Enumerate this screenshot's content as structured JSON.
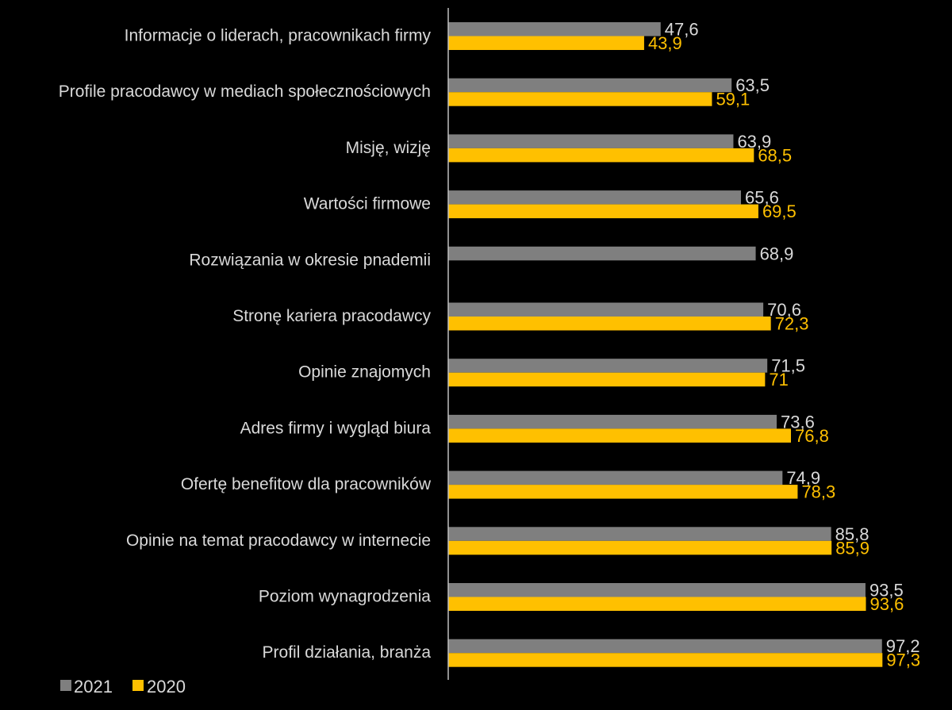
{
  "chart_data": {
    "type": "bar",
    "orientation": "horizontal",
    "categories": [
      "Informacje o liderach, pracownikach firmy",
      "Profile pracodawcy w mediach społecznościowych",
      "Misję, wizję",
      "Wartości firmowe",
      "Rozwiązania w okresie pnademii",
      "Stronę kariera pracodawcy",
      "Opinie znajomych",
      "Adres firmy i wygląd biura",
      "Ofertę benefitow dla pracowników",
      "Opinie na temat pracodawcy w internecie",
      "Poziom wynagrodzenia",
      "Profil działania, branża"
    ],
    "series": [
      {
        "name": "2021",
        "color": "#7f7f7f",
        "label_color": "#d9d9d9",
        "values": [
          47.6,
          63.5,
          63.9,
          65.6,
          68.9,
          70.6,
          71.5,
          73.6,
          74.9,
          85.8,
          93.5,
          97.2
        ],
        "labels": [
          "47,6",
          "63,5",
          "63,9",
          "65,6",
          "68,9",
          "70,6",
          "71,5",
          "73,6",
          "74,9",
          "85,8",
          "93,5",
          "97,2"
        ]
      },
      {
        "name": "2020",
        "color": "#ffc000",
        "label_color": "#ffc000",
        "values": [
          43.9,
          59.1,
          68.5,
          69.5,
          null,
          72.3,
          71,
          76.8,
          78.3,
          85.9,
          93.6,
          97.3
        ],
        "labels": [
          "43,9",
          "59,1",
          "68,5",
          "69,5",
          "",
          "72,3",
          "71",
          "76,8",
          "78,3",
          "85,9",
          "93,6",
          "97,3"
        ]
      }
    ],
    "xlim": [
      0,
      100
    ],
    "grid": false,
    "legend_position": "bottom-left"
  }
}
